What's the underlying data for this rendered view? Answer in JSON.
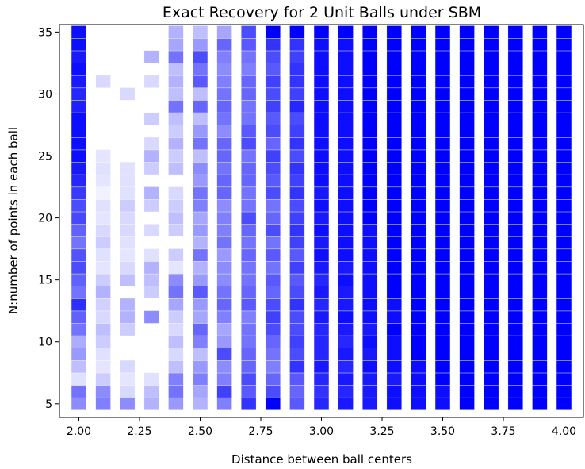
{
  "chart_data": {
    "type": "heatmap",
    "title": "Exact Recovery for 2 Unit Balls under SBM",
    "xlabel": "Distance between ball centers",
    "ylabel": "N:number of points in each ball",
    "xlim": [
      1.92,
      4.08
    ],
    "ylim": [
      3.9,
      35.6
    ],
    "x_ticks": [
      2.0,
      2.25,
      2.5,
      2.75,
      3.0,
      3.25,
      3.5,
      3.75,
      4.0
    ],
    "x_tick_labels": [
      "2.00",
      "2.25",
      "2.50",
      "2.75",
      "3.00",
      "3.25",
      "3.50",
      "3.75",
      "4.00"
    ],
    "y_ticks": [
      5,
      10,
      15,
      20,
      25,
      30,
      35
    ],
    "y_tick_labels": [
      "5",
      "10",
      "15",
      "20",
      "25",
      "30",
      "35"
    ],
    "x_values": [
      2.0,
      2.1,
      2.2,
      2.3,
      2.4,
      2.5,
      2.6,
      2.7,
      2.8,
      2.9,
      3.0,
      3.1,
      3.2,
      3.3,
      3.4,
      3.5,
      3.6,
      3.7,
      3.8,
      3.9,
      4.0
    ],
    "y_values": [
      5,
      6,
      7,
      8,
      9,
      10,
      11,
      12,
      13,
      14,
      15,
      16,
      17,
      18,
      19,
      20,
      21,
      22,
      23,
      24,
      25,
      26,
      27,
      28,
      29,
      30,
      31,
      32,
      33,
      34,
      35
    ],
    "value_description": "opacity of blue square = fraction of exact recovery (0 = white, 1 = solid blue)",
    "marker_color": "#0000ff",
    "grid": false,
    "legend": "none",
    "values": [
      [
        0.45,
        0.55,
        0.12,
        0.25,
        0.4,
        0.32,
        0.55,
        0.62,
        0.82,
        0.55,
        0.62,
        0.7,
        0.68,
        0.55,
        0.62,
        0.72,
        0.7,
        0.78,
        0.85,
        0.9,
        0.95,
        0.95,
        0.95,
        0.95,
        0.88,
        0.85,
        0.9,
        0.95,
        0.9,
        0.95,
        0.95
      ],
      [
        0.5,
        0.45,
        0.2,
        0.1,
        0.12,
        0.2,
        0.25,
        0.15,
        0.18,
        0.3,
        0.2,
        0.1,
        0.12,
        0.2,
        0.15,
        0.1,
        0.12,
        0.05,
        0.1,
        0.12,
        0.1,
        0.0,
        0.0,
        0.0,
        0.0,
        0.0,
        0.15,
        0.0,
        0.0,
        0.0,
        0.0
      ],
      [
        0.45,
        0.15,
        0.1,
        0.15,
        0.0,
        0.0,
        0.2,
        0.3,
        0.3,
        0.0,
        0.25,
        0.15,
        0.1,
        0.12,
        0.15,
        0.15,
        0.2,
        0.12,
        0.12,
        0.12,
        0.0,
        0.0,
        0.0,
        0.0,
        0.0,
        0.15,
        0.0,
        0.0,
        0.0,
        0.0,
        0.0
      ],
      [
        0.3,
        0.25,
        0.12,
        0.0,
        0.0,
        0.0,
        0.0,
        0.45,
        0.0,
        0.2,
        0.25,
        0.3,
        0.12,
        0.0,
        0.15,
        0.0,
        0.2,
        0.3,
        0.0,
        0.2,
        0.3,
        0.15,
        0.0,
        0.2,
        0.0,
        0.0,
        0.15,
        0.0,
        0.3,
        0.0,
        0.0
      ],
      [
        0.4,
        0.55,
        0.5,
        0.25,
        0.15,
        0.25,
        0.15,
        0.2,
        0.35,
        0.55,
        0.45,
        0.1,
        0.2,
        0.0,
        0.2,
        0.25,
        0.2,
        0.15,
        0.0,
        0.25,
        0.2,
        0.3,
        0.2,
        0.25,
        0.55,
        0.25,
        0.3,
        0.25,
        0.55,
        0.35,
        0.3
      ],
      [
        0.3,
        0.35,
        0.5,
        0.4,
        0.25,
        0.5,
        0.6,
        0.35,
        0.4,
        0.65,
        0.4,
        0.3,
        0.55,
        0.3,
        0.4,
        0.35,
        0.5,
        0.55,
        0.4,
        0.45,
        0.25,
        0.55,
        0.4,
        0.25,
        0.6,
        0.25,
        0.65,
        0.55,
        0.7,
        0.4,
        0.25
      ],
      [
        0.5,
        0.75,
        0.5,
        0.45,
        0.7,
        0.4,
        0.35,
        0.5,
        0.6,
        0.55,
        0.45,
        0.45,
        0.4,
        0.55,
        0.5,
        0.5,
        0.45,
        0.6,
        0.6,
        0.55,
        0.6,
        0.6,
        0.45,
        0.55,
        0.6,
        0.55,
        0.5,
        0.45,
        0.5,
        0.6,
        0.35
      ],
      [
        0.8,
        0.65,
        0.7,
        0.6,
        0.6,
        0.55,
        0.55,
        0.5,
        0.65,
        0.6,
        0.55,
        0.55,
        0.6,
        0.55,
        0.6,
        0.7,
        0.55,
        0.55,
        0.6,
        0.6,
        0.55,
        0.7,
        0.65,
        0.55,
        0.55,
        0.6,
        0.6,
        0.5,
        0.55,
        0.65,
        0.7
      ],
      [
        1.0,
        0.7,
        0.6,
        0.5,
        0.55,
        0.6,
        0.7,
        0.75,
        0.7,
        0.6,
        0.65,
        0.55,
        0.65,
        0.55,
        0.7,
        0.6,
        0.55,
        0.7,
        0.65,
        0.7,
        0.75,
        0.6,
        0.7,
        0.65,
        0.75,
        0.7,
        0.75,
        0.65,
        0.7,
        0.8,
        1.0
      ],
      [
        0.65,
        0.6,
        0.65,
        0.8,
        0.7,
        0.75,
        0.7,
        0.7,
        0.8,
        0.7,
        0.65,
        0.75,
        0.65,
        0.75,
        0.8,
        0.75,
        0.7,
        0.8,
        0.75,
        0.8,
        0.7,
        0.8,
        0.75,
        0.7,
        0.85,
        0.75,
        0.8,
        0.8,
        0.75,
        0.8,
        1.0
      ],
      [
        0.85,
        0.8,
        0.85,
        0.9,
        0.85,
        0.85,
        0.85,
        0.9,
        0.85,
        0.9,
        0.85,
        0.9,
        0.95,
        0.9,
        0.95,
        0.9,
        0.95,
        0.9,
        0.95,
        0.95,
        0.95,
        0.95,
        0.95,
        0.95,
        0.95,
        0.95,
        0.95,
        0.95,
        0.95,
        0.95,
        1.0
      ],
      [
        0.9,
        0.85,
        0.9,
        0.85,
        0.9,
        0.85,
        0.9,
        0.95,
        0.9,
        0.9,
        0.95,
        0.9,
        0.95,
        0.95,
        0.95,
        0.95,
        0.95,
        0.95,
        0.95,
        0.95,
        0.95,
        0.95,
        0.95,
        0.95,
        0.95,
        0.95,
        0.95,
        0.95,
        0.95,
        0.95,
        1.0
      ],
      [
        0.9,
        0.9,
        0.9,
        0.95,
        0.9,
        0.95,
        0.9,
        0.95,
        0.95,
        0.95,
        0.95,
        0.95,
        0.95,
        0.95,
        0.95,
        1.0,
        1.0,
        1.0,
        1.0,
        1.0,
        1.0,
        1.0,
        1.0,
        1.0,
        1.0,
        1.0,
        1.0,
        1.0,
        1.0,
        1.0,
        1.0
      ],
      [
        0.95,
        0.95,
        0.9,
        0.95,
        0.95,
        0.95,
        1.0,
        0.95,
        0.95,
        1.0,
        1.0,
        1.0,
        1.0,
        1.0,
        1.0,
        1.0,
        1.0,
        1.0,
        1.0,
        1.0,
        1.0,
        1.0,
        1.0,
        1.0,
        1.0,
        1.0,
        1.0,
        1.0,
        1.0,
        1.0,
        1.0
      ],
      [
        0.95,
        0.95,
        0.95,
        0.95,
        1.0,
        1.0,
        1.0,
        1.0,
        1.0,
        1.0,
        1.0,
        1.0,
        1.0,
        1.0,
        1.0,
        1.0,
        1.0,
        1.0,
        1.0,
        1.0,
        1.0,
        1.0,
        1.0,
        1.0,
        1.0,
        1.0,
        1.0,
        1.0,
        1.0,
        1.0,
        1.0
      ],
      [
        0.95,
        0.95,
        1.0,
        1.0,
        1.0,
        1.0,
        1.0,
        1.0,
        1.0,
        1.0,
        1.0,
        1.0,
        1.0,
        1.0,
        1.0,
        1.0,
        1.0,
        1.0,
        1.0,
        1.0,
        1.0,
        1.0,
        1.0,
        1.0,
        1.0,
        1.0,
        1.0,
        1.0,
        1.0,
        1.0,
        1.0
      ],
      [
        1.0,
        1.0,
        1.0,
        1.0,
        1.0,
        1.0,
        1.0,
        1.0,
        1.0,
        1.0,
        1.0,
        1.0,
        1.0,
        1.0,
        1.0,
        1.0,
        1.0,
        1.0,
        1.0,
        1.0,
        1.0,
        1.0,
        1.0,
        1.0,
        1.0,
        1.0,
        1.0,
        1.0,
        1.0,
        1.0,
        1.0
      ],
      [
        1.0,
        1.0,
        1.0,
        1.0,
        1.0,
        1.0,
        1.0,
        1.0,
        1.0,
        1.0,
        1.0,
        1.0,
        1.0,
        1.0,
        1.0,
        1.0,
        1.0,
        1.0,
        1.0,
        1.0,
        1.0,
        1.0,
        1.0,
        1.0,
        1.0,
        1.0,
        1.0,
        1.0,
        1.0,
        1.0,
        1.0
      ],
      [
        1.0,
        1.0,
        1.0,
        1.0,
        1.0,
        1.0,
        1.0,
        1.0,
        1.0,
        1.0,
        1.0,
        1.0,
        1.0,
        1.0,
        1.0,
        1.0,
        1.0,
        1.0,
        1.0,
        1.0,
        1.0,
        1.0,
        1.0,
        1.0,
        1.0,
        1.0,
        1.0,
        1.0,
        1.0,
        1.0,
        1.0
      ],
      [
        1.0,
        1.0,
        1.0,
        1.0,
        1.0,
        1.0,
        1.0,
        1.0,
        1.0,
        1.0,
        1.0,
        1.0,
        1.0,
        1.0,
        1.0,
        1.0,
        1.0,
        1.0,
        1.0,
        1.0,
        1.0,
        1.0,
        1.0,
        1.0,
        1.0,
        1.0,
        1.0,
        1.0,
        1.0,
        1.0,
        1.0
      ],
      [
        1.0,
        1.0,
        1.0,
        1.0,
        1.0,
        1.0,
        1.0,
        1.0,
        1.0,
        1.0,
        1.0,
        1.0,
        1.0,
        1.0,
        1.0,
        1.0,
        1.0,
        1.0,
        1.0,
        1.0,
        1.0,
        1.0,
        1.0,
        1.0,
        1.0,
        1.0,
        1.0,
        1.0,
        1.0,
        1.0,
        1.0
      ]
    ]
  }
}
